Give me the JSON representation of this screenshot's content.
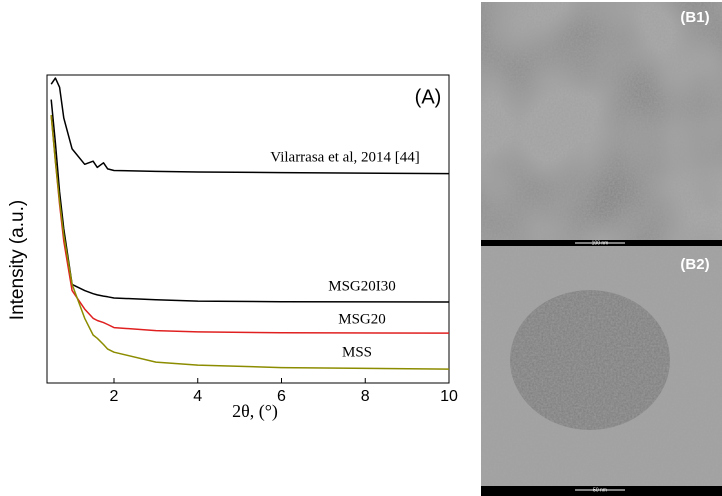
{
  "chart_data": {
    "type": "line",
    "annotation": "(A)",
    "xlabel": "2θ, (°)",
    "ylabel": "Intensity (a.u.)",
    "xlim": [
      0.4,
      10
    ],
    "xticks": [
      2,
      4,
      6,
      8,
      10
    ],
    "ylim": [
      0,
      100
    ],
    "x": [
      0.5,
      0.6,
      0.7,
      0.8,
      1,
      1.3,
      1.5,
      1.6,
      1.75,
      1.85,
      2,
      3,
      4,
      6,
      10
    ],
    "series": [
      {
        "name": "Vilarrasa et al, 2014 [44]",
        "color": "#000000",
        "values": [
          97,
          99,
          96,
          86,
          76,
          71,
          72,
          70,
          71.5,
          69.5,
          69,
          68.7,
          68.5,
          68.3,
          68
        ]
      },
      {
        "name": "MSG20I30",
        "color": "#000000",
        "values": [
          92,
          78,
          62,
          50,
          32,
          30,
          29,
          28.6,
          28.2,
          28,
          27.6,
          27,
          26.6,
          26.4,
          26.3
        ]
      },
      {
        "name": "MSG20",
        "color": "#e02020",
        "values": [
          87,
          72,
          58,
          46,
          30,
          24,
          21,
          20.3,
          19.6,
          19,
          18,
          17,
          16.6,
          16.3,
          16.2
        ]
      },
      {
        "name": "MSS",
        "color": "#8c8c00",
        "values": [
          87,
          72,
          59,
          48,
          32,
          21,
          15.6,
          14.5,
          12.5,
          11,
          10,
          6.8,
          5.8,
          5,
          4.5
        ]
      }
    ]
  },
  "images": [
    {
      "label": "(B1)",
      "scale_bar": "100 nm"
    },
    {
      "label": "(B2)",
      "scale_bar": "50 nm"
    }
  ]
}
